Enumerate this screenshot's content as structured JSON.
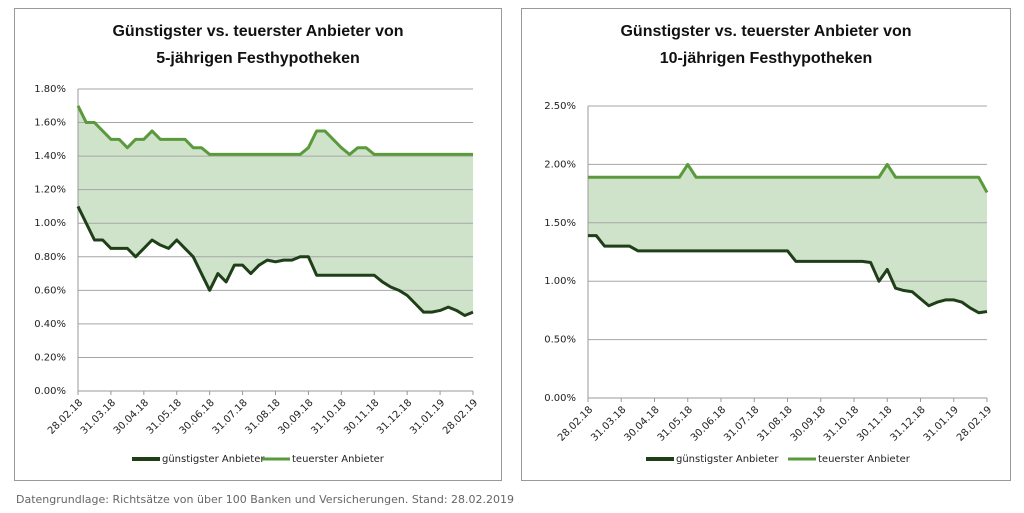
{
  "chart_data": [
    {
      "type": "line",
      "title": [
        "Günstigster vs. teuerster Anbieter von",
        "5-jährigen Festhypotheken"
      ],
      "categories": [
        "28.02.18",
        null,
        null,
        null,
        "31.03.18",
        null,
        null,
        null,
        "30.04.18",
        null,
        null,
        null,
        "31.05.18",
        null,
        null,
        null,
        "30.06.18",
        null,
        null,
        null,
        "31.07.18",
        null,
        null,
        null,
        "31.08.18",
        null,
        null,
        null,
        "30.09.18",
        null,
        null,
        null,
        "31.10.18",
        null,
        null,
        null,
        "30.11.18",
        null,
        null,
        null,
        "31.12.18",
        null,
        null,
        null,
        "31.01.19",
        null,
        null,
        null,
        "28.02.19"
      ],
      "series": [
        {
          "name": "günstigster Anbieter",
          "color": "#1e3f18",
          "values": [
            1.1,
            1.0,
            0.9,
            0.9,
            0.85,
            0.85,
            0.85,
            0.8,
            0.85,
            0.9,
            0.87,
            0.85,
            0.9,
            0.85,
            0.8,
            0.7,
            0.6,
            0.7,
            0.65,
            0.75,
            0.75,
            0.7,
            0.75,
            0.78,
            0.77,
            0.78,
            0.78,
            0.8,
            0.8,
            0.69,
            0.69,
            0.69,
            0.69,
            0.69,
            0.69,
            0.69,
            0.69,
            0.65,
            0.62,
            0.6,
            0.57,
            0.52,
            0.47,
            0.47,
            0.48,
            0.5,
            0.48,
            0.45,
            0.47
          ]
        },
        {
          "name": "teuerster Anbieter",
          "color": "#5b9a3c",
          "values": [
            1.7,
            1.6,
            1.6,
            1.55,
            1.5,
            1.5,
            1.45,
            1.5,
            1.5,
            1.55,
            1.5,
            1.5,
            1.5,
            1.5,
            1.45,
            1.45,
            1.41,
            1.41,
            1.41,
            1.41,
            1.41,
            1.41,
            1.41,
            1.41,
            1.41,
            1.41,
            1.41,
            1.41,
            1.45,
            1.55,
            1.55,
            1.5,
            1.45,
            1.41,
            1.45,
            1.45,
            1.41,
            1.41,
            1.41,
            1.41,
            1.41,
            1.41,
            1.41,
            1.41,
            1.41,
            1.41,
            1.41,
            1.41,
            1.41
          ]
        }
      ],
      "fill_color": "#cfe3cb",
      "ylim": [
        0,
        1.8
      ],
      "yticks": [
        {
          "value": 0,
          "label": "0.00%"
        },
        {
          "value": 0.2,
          "label": "0.20%"
        },
        {
          "value": 0.4,
          "label": "0.40%"
        },
        {
          "value": 0.6,
          "label": "0.60%"
        },
        {
          "value": 0.8,
          "label": "0.80%"
        },
        {
          "value": 1.0,
          "label": "1.00%"
        },
        {
          "value": 1.2,
          "label": "1.20%"
        },
        {
          "value": 1.4,
          "label": "1.40%"
        },
        {
          "value": 1.6,
          "label": "1.60%"
        },
        {
          "value": 1.8,
          "label": "1.80%"
        }
      ],
      "grid": true
    },
    {
      "type": "line",
      "title": [
        "Günstigster vs. teuerster Anbieter von",
        "10-jährigen Festhypotheken"
      ],
      "categories": [
        "28.02.18",
        null,
        null,
        null,
        "31.03.18",
        null,
        null,
        null,
        "30.04.18",
        null,
        null,
        null,
        "31.05.18",
        null,
        null,
        null,
        "30.06.18",
        null,
        null,
        null,
        "31.07.18",
        null,
        null,
        null,
        "31.08.18",
        null,
        null,
        null,
        "30.09.18",
        null,
        null,
        null,
        "31.10.18",
        null,
        null,
        null,
        "30.11.18",
        null,
        null,
        null,
        "31.12.18",
        null,
        null,
        null,
        "31.01.19",
        null,
        null,
        null,
        "28.02.19"
      ],
      "series": [
        {
          "name": "günstigster Anbieter",
          "color": "#1e3f18",
          "values": [
            1.39,
            1.39,
            1.3,
            1.3,
            1.3,
            1.3,
            1.26,
            1.26,
            1.26,
            1.26,
            1.26,
            1.26,
            1.26,
            1.26,
            1.26,
            1.26,
            1.26,
            1.26,
            1.26,
            1.26,
            1.26,
            1.26,
            1.26,
            1.26,
            1.26,
            1.17,
            1.17,
            1.17,
            1.17,
            1.17,
            1.17,
            1.17,
            1.17,
            1.17,
            1.16,
            1.0,
            1.1,
            0.94,
            0.92,
            0.91,
            0.85,
            0.79,
            0.82,
            0.84,
            0.84,
            0.82,
            0.77,
            0.73,
            0.74
          ]
        },
        {
          "name": "teuerster Anbieter",
          "color": "#5b9a3c",
          "values": [
            1.89,
            1.89,
            1.89,
            1.89,
            1.89,
            1.89,
            1.89,
            1.89,
            1.89,
            1.89,
            1.89,
            1.89,
            2.0,
            1.89,
            1.89,
            1.89,
            1.89,
            1.89,
            1.89,
            1.89,
            1.89,
            1.89,
            1.89,
            1.89,
            1.89,
            1.89,
            1.89,
            1.89,
            1.89,
            1.89,
            1.89,
            1.89,
            1.89,
            1.89,
            1.89,
            1.89,
            2.0,
            1.89,
            1.89,
            1.89,
            1.89,
            1.89,
            1.89,
            1.89,
            1.89,
            1.89,
            1.89,
            1.89,
            1.76
          ]
        }
      ],
      "fill_color": "#cfe3cb",
      "ylim": [
        0,
        2.5
      ],
      "yticks": [
        {
          "value": 0,
          "label": "0.00%"
        },
        {
          "value": 0.5,
          "label": "0.50%"
        },
        {
          "value": 1.0,
          "label": "1.00%"
        },
        {
          "value": 1.5,
          "label": "1.50%"
        },
        {
          "value": 2.0,
          "label": "2.00%"
        },
        {
          "value": 2.5,
          "label": "2.50%"
        }
      ],
      "grid": true
    }
  ],
  "footnote": "Datengrundlage: Richtsätze von über 100 Banken und Versicherungen. Stand: 28.02.2019"
}
